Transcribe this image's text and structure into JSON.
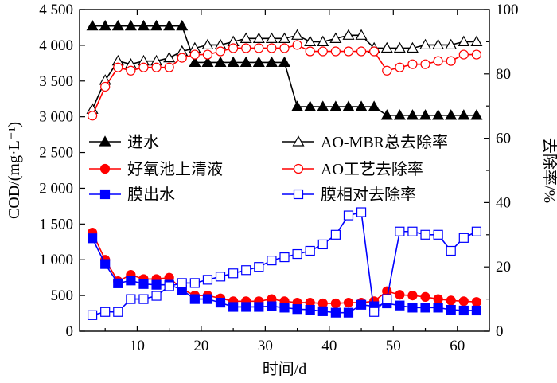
{
  "chart_data": {
    "type": "line",
    "xlabel": "时间/d",
    "ylabel_left": "COD/(mg·L⁻¹)",
    "ylabel_right": "去除率/%",
    "xlim": [
      1,
      65
    ],
    "ylim_left": [
      0,
      4500
    ],
    "ylim_right": [
      0,
      100
    ],
    "x_ticks": [
      10,
      20,
      30,
      40,
      50,
      60
    ],
    "y_left_ticks": [
      "0",
      "500",
      "1 000",
      "1 500",
      "2 000",
      "2 500",
      "3 000",
      "3 500",
      "4 000",
      "4 500"
    ],
    "y_right_ticks": [
      0,
      20,
      40,
      60,
      80,
      100
    ],
    "grid": false,
    "legend": "center",
    "series": [
      {
        "name": "进水",
        "axis": "left",
        "color": "#000000",
        "marker": "triangle-filled",
        "x": [
          3,
          5,
          7,
          9,
          11,
          13,
          15,
          17,
          19,
          21,
          23,
          25,
          27,
          29,
          31,
          33,
          35,
          37,
          39,
          41,
          43,
          45,
          47,
          49,
          51,
          53,
          55,
          57,
          59,
          61,
          63
        ],
        "y": [
          4270,
          4270,
          4270,
          4270,
          4270,
          4270,
          4270,
          4270,
          3760,
          3760,
          3760,
          3760,
          3760,
          3760,
          3760,
          3760,
          3140,
          3140,
          3140,
          3140,
          3140,
          3140,
          3140,
          3020,
          3020,
          3020,
          3020,
          3020,
          3020,
          3020,
          3020
        ]
      },
      {
        "name": "好氧池上清液",
        "axis": "left",
        "color": "#ff0000",
        "marker": "circle-filled",
        "x": [
          3,
          5,
          7,
          9,
          11,
          13,
          15,
          17,
          19,
          21,
          23,
          25,
          27,
          29,
          31,
          33,
          35,
          37,
          39,
          41,
          43,
          45,
          47,
          49,
          51,
          53,
          55,
          57,
          59,
          61,
          63
        ],
        "y": [
          1380,
          1000,
          700,
          790,
          730,
          730,
          750,
          590,
          500,
          500,
          460,
          420,
          420,
          420,
          450,
          420,
          400,
          400,
          390,
          390,
          400,
          400,
          420,
          560,
          510,
          500,
          480,
          450,
          430,
          420,
          410
        ]
      },
      {
        "name": "膜出水",
        "axis": "left",
        "color": "#0000ff",
        "marker": "square-filled",
        "x": [
          3,
          5,
          7,
          9,
          11,
          13,
          15,
          17,
          19,
          21,
          23,
          25,
          27,
          29,
          31,
          33,
          35,
          37,
          39,
          41,
          43,
          45,
          47,
          49,
          51,
          53,
          55,
          57,
          59,
          61,
          63
        ],
        "y": [
          1300,
          940,
          670,
          710,
          660,
          650,
          650,
          580,
          450,
          450,
          400,
          340,
          340,
          340,
          350,
          330,
          310,
          300,
          280,
          260,
          260,
          370,
          350,
          390,
          360,
          330,
          330,
          330,
          300,
          290,
          290
        ]
      },
      {
        "name": "AO-MBR总去除率",
        "axis": "right",
        "color": "#000000",
        "marker": "triangle-open",
        "x": [
          3,
          5,
          7,
          9,
          11,
          13,
          15,
          17,
          19,
          21,
          23,
          25,
          27,
          29,
          31,
          33,
          35,
          37,
          39,
          41,
          43,
          45,
          47,
          49,
          51,
          53,
          55,
          57,
          59,
          61,
          63
        ],
        "y": [
          69,
          78,
          84,
          83,
          84,
          84,
          85,
          87,
          88,
          89,
          89,
          90,
          91,
          91,
          91,
          91,
          92,
          90,
          90,
          91,
          92,
          92,
          88,
          88,
          88,
          88,
          89,
          89,
          89,
          90,
          90
        ]
      },
      {
        "name": "AO工艺去除率",
        "axis": "right",
        "color": "#ff0000",
        "marker": "circle-open",
        "x": [
          3,
          5,
          7,
          9,
          11,
          13,
          15,
          17,
          19,
          21,
          23,
          25,
          27,
          29,
          31,
          33,
          35,
          37,
          39,
          41,
          43,
          45,
          47,
          49,
          51,
          53,
          55,
          57,
          59,
          61,
          63
        ],
        "y": [
          67,
          76,
          82,
          81,
          82,
          82,
          82,
          85,
          86,
          86,
          87,
          88,
          88,
          88,
          88,
          88,
          89,
          87,
          87,
          87,
          87,
          87,
          87,
          81,
          82,
          83,
          83,
          84,
          84,
          86,
          86
        ]
      },
      {
        "name": "膜相对去除率",
        "axis": "right",
        "color": "#0000ff",
        "marker": "square-open",
        "x": [
          3,
          5,
          7,
          9,
          11,
          13,
          15,
          17,
          19,
          21,
          23,
          25,
          27,
          29,
          31,
          33,
          35,
          37,
          39,
          41,
          43,
          45,
          47,
          49,
          51,
          53,
          55,
          57,
          59,
          61,
          63
        ],
        "y": [
          5,
          6,
          6,
          10,
          10,
          11,
          14,
          15,
          15,
          16,
          17,
          18,
          19,
          20,
          22,
          23,
          24,
          25,
          27,
          30,
          36,
          37,
          6,
          10,
          31,
          31,
          30,
          30,
          25,
          29,
          31
        ]
      }
    ]
  }
}
